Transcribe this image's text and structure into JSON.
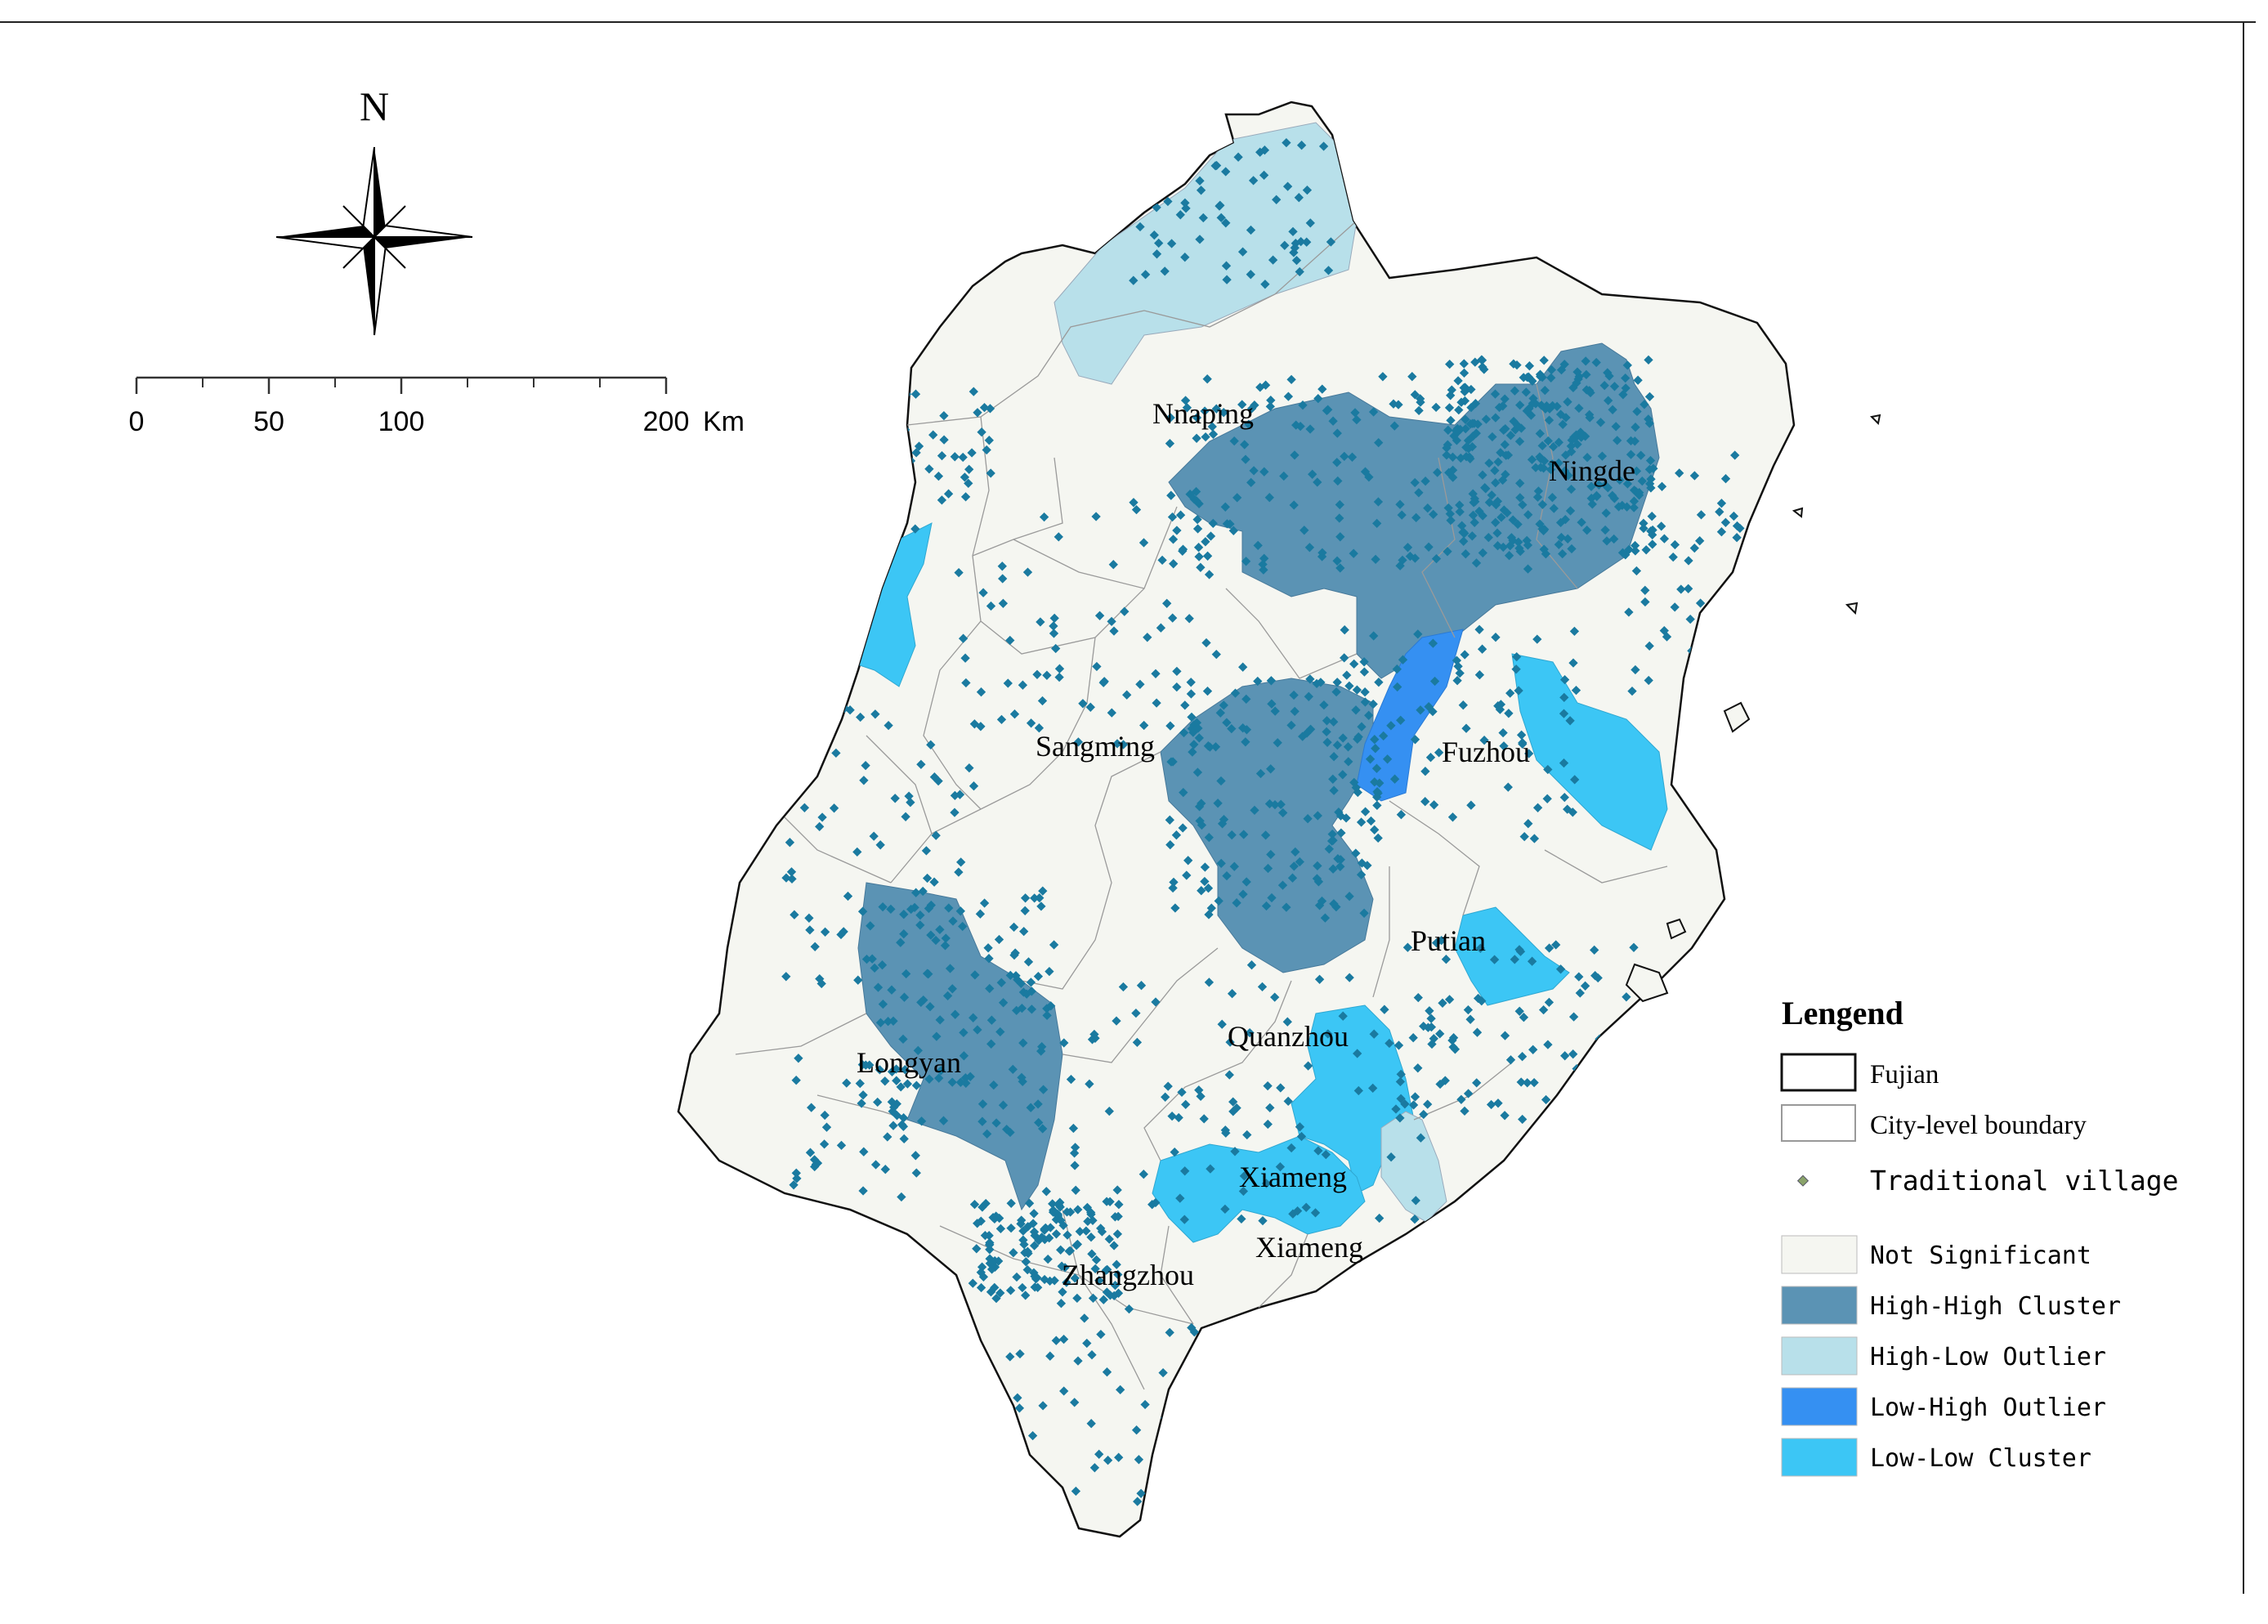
{
  "north_arrow": {
    "label": "N"
  },
  "scale_bar": {
    "ticks": [
      "0",
      "50",
      "100",
      "200"
    ],
    "unit": "Km"
  },
  "city_labels": [
    {
      "id": "nanping",
      "text": "Nnaping"
    },
    {
      "id": "ningde",
      "text": "Ningde"
    },
    {
      "id": "sanming",
      "text": "Sangming"
    },
    {
      "id": "fuzhou",
      "text": "Fuzhou"
    },
    {
      "id": "putian",
      "text": "Putian"
    },
    {
      "id": "quanzhou",
      "text": "Quanzhou"
    },
    {
      "id": "longyan",
      "text": "Longyan"
    },
    {
      "id": "xiamen-1",
      "text": "Xiameng"
    },
    {
      "id": "xiamen-2",
      "text": "Xiameng"
    },
    {
      "id": "zhangzhou",
      "text": "Zhangzhou"
    }
  ],
  "legend": {
    "title": "Lengend",
    "boundaries": [
      {
        "id": "fujian",
        "label": "Fujian"
      },
      {
        "id": "city-boundary",
        "label": "City-level boundary"
      }
    ],
    "point": {
      "label": "Traditional village",
      "color": "#1a7aa0"
    },
    "classes": [
      {
        "id": "not-significant",
        "label": "Not Significant",
        "color": "#f5f6f1"
      },
      {
        "id": "high-high",
        "label": "High-High Cluster",
        "color": "#5b93b4"
      },
      {
        "id": "high-low",
        "label": "High-Low Outlier",
        "color": "#b8e0ea"
      },
      {
        "id": "low-high",
        "label": "Low-High Outlier",
        "color": "#3590f2"
      },
      {
        "id": "low-low",
        "label": "Low-Low Cluster",
        "color": "#3cc6f5"
      }
    ]
  }
}
